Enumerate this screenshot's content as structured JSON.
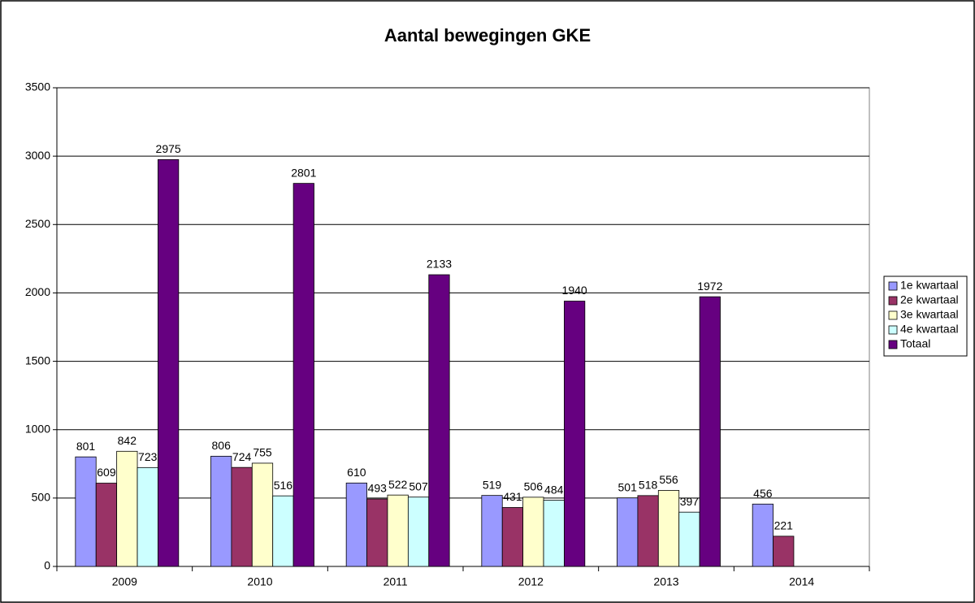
{
  "chart_data": {
    "type": "bar",
    "title": "Aantal bewegingen GKE",
    "categories": [
      "2009",
      "2010",
      "2011",
      "2012",
      "2013",
      "2014"
    ],
    "series": [
      {
        "name": "1e kwartaal",
        "color": "#9999ff",
        "values": [
          801,
          806,
          610,
          519,
          501,
          456
        ]
      },
      {
        "name": "2e kwartaal",
        "color": "#993366",
        "values": [
          609,
          724,
          493,
          431,
          518,
          221
        ]
      },
      {
        "name": "3e kwartaal",
        "color": "#ffffcc",
        "values": [
          842,
          755,
          522,
          506,
          556,
          null
        ]
      },
      {
        "name": "4e kwartaal",
        "color": "#ccffff",
        "values": [
          723,
          516,
          507,
          484,
          397,
          null
        ]
      },
      {
        "name": "Totaal",
        "color": "#660080",
        "values": [
          2975,
          2801,
          2133,
          1940,
          1972,
          null
        ]
      }
    ],
    "ylim": [
      0,
      3500
    ],
    "yticks": [
      0,
      500,
      1000,
      1500,
      2000,
      2500,
      3000,
      3500
    ],
    "grid": true,
    "legend": "right"
  }
}
